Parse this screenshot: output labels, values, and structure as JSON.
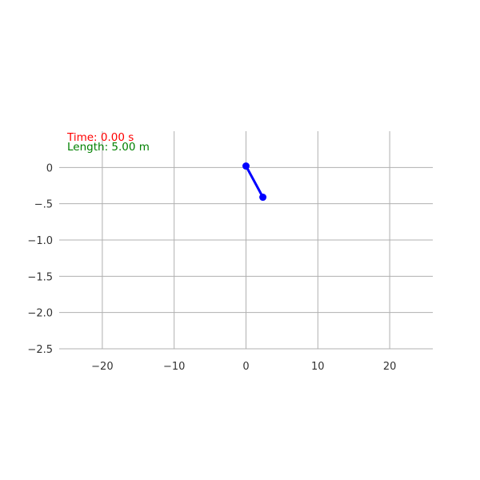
{
  "chart_data": {
    "type": "line",
    "title": "",
    "xlabel": "",
    "ylabel": "",
    "xlim": [
      -26,
      26
    ],
    "ylim": [
      -2.5,
      0.5
    ],
    "xticks": [
      -20,
      -10,
      0,
      10,
      20
    ],
    "yticks": [
      0,
      -0.5,
      -1.0,
      -1.5,
      -2.0,
      -2.5
    ],
    "x_tick_labels": [
      "−20",
      "−10",
      "0",
      "10",
      "20"
    ],
    "y_tick_labels": [
      "0",
      "−.5",
      "−1.0",
      "−1.5",
      "−2.0",
      "−2.5"
    ],
    "grid": true,
    "series": [
      {
        "points": [
          {
            "x": 0,
            "y": 0.02
          },
          {
            "x": 2.35,
            "y": -0.41
          }
        ],
        "color": "#0000ff",
        "marker": "circle"
      }
    ],
    "annotations": {
      "time_text": "Time: 0.00 s",
      "length_text": "Length: 5.00 m",
      "time_color": "#ff0000",
      "length_color": "#008000"
    }
  }
}
